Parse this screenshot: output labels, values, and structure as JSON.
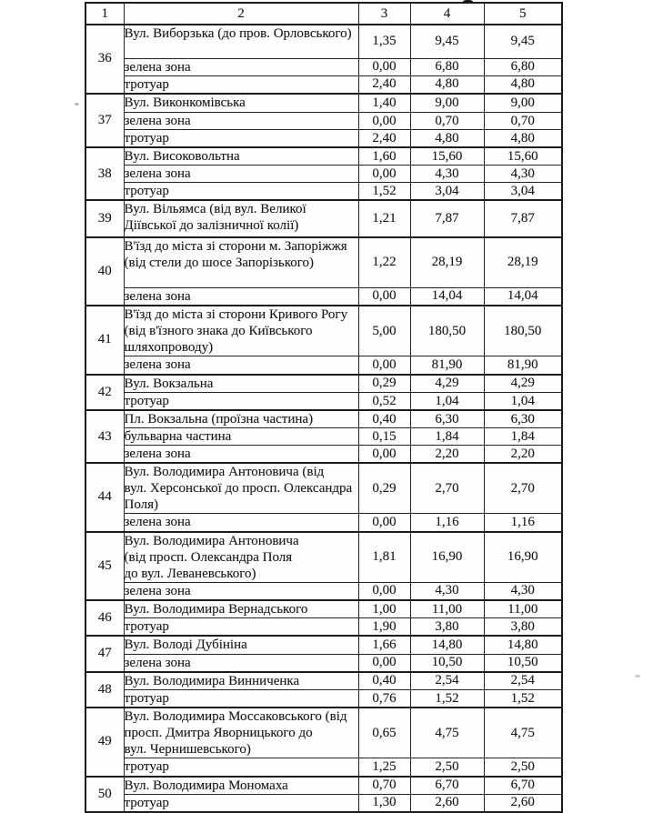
{
  "table": {
    "header": [
      "1",
      "2",
      "3",
      "4",
      "5"
    ],
    "groups": [
      {
        "num": "36",
        "rows": [
          {
            "name": "Вул. Виборзька (до пров. Орловського)",
            "values": [
              "1,35",
              "9,45",
              "9,45"
            ]
          },
          {
            "name": "зелена зона",
            "values": [
              "0,00",
              "6,80",
              "6,80"
            ]
          },
          {
            "name": "тротуар",
            "values": [
              "2,40",
              "4,80",
              "4,80"
            ]
          }
        ]
      },
      {
        "num": "37",
        "rows": [
          {
            "name": "Вул. Виконкомівська",
            "values": [
              "1,40",
              "9,00",
              "9,00"
            ]
          },
          {
            "name": "зелена зона",
            "values": [
              "0,00",
              "0,70",
              "0,70"
            ]
          },
          {
            "name": "тротуар",
            "values": [
              "2,40",
              "4,80",
              "4,80"
            ]
          }
        ]
      },
      {
        "num": "38",
        "rows": [
          {
            "name": "Вул. Високовольтна",
            "values": [
              "1,60",
              "15,60",
              "15,60"
            ]
          },
          {
            "name": "зелена зона",
            "values": [
              "0,00",
              "4,30",
              "4,30"
            ]
          },
          {
            "name": "тротуар",
            "values": [
              "1,52",
              "3,04",
              "3,04"
            ]
          }
        ]
      },
      {
        "num": "39",
        "rows": [
          {
            "name": "Вул. Вільямса (від вул. Великої\nДіївської до залізничної колії)",
            "values": [
              "1,21",
              "7,87",
              "7,87"
            ]
          }
        ]
      },
      {
        "num": "40",
        "rows": [
          {
            "name": "В'їзд до міста зі сторони м. Запоріжжя\n(від стели до шосе Запорізького)",
            "values": [
              "1,22",
              "28,19",
              "28,19"
            ]
          },
          {
            "name": "зелена зона",
            "values": [
              "0,00",
              "14,04",
              "14,04"
            ]
          }
        ]
      },
      {
        "num": "41",
        "rows": [
          {
            "name": "В'їзд до міста зі сторони Кривого Рогу\n(від в'їзного знака до Київського\nшляхопроводу)",
            "values": [
              "5,00",
              "180,50",
              "180,50"
            ]
          },
          {
            "name": "зелена зона",
            "values": [
              "0,00",
              "81,90",
              "81,90"
            ]
          }
        ]
      },
      {
        "num": "42",
        "rows": [
          {
            "name": "Вул. Вокзальна",
            "values": [
              "0,29",
              "4,29",
              "4,29"
            ]
          },
          {
            "name": "тротуар",
            "values": [
              "0,52",
              "1,04",
              "1,04"
            ]
          }
        ]
      },
      {
        "num": "43",
        "rows": [
          {
            "name": "Пл. Вокзальна (проїзна частина)",
            "values": [
              "0,40",
              "6,30",
              "6,30"
            ]
          },
          {
            "name": "бульварна частина",
            "values": [
              "0,15",
              "1,84",
              "1,84"
            ]
          },
          {
            "name": "зелена зона",
            "values": [
              "0,00",
              "2,20",
              "2,20"
            ]
          }
        ]
      },
      {
        "num": "44",
        "rows": [
          {
            "name": "Вул. Володимира  Антоновича (від\nвул. Херсонської до просп. Олександра\nПоля)",
            "values": [
              "0,29",
              "2,70",
              "2,70"
            ]
          },
          {
            "name": "зелена зона",
            "values": [
              "0,00",
              "1,16",
              "1,16"
            ]
          }
        ]
      },
      {
        "num": "45",
        "rows": [
          {
            "name": "Вул. Володимира  Антоновича\n(від просп. Олександра Поля\nдо вул. Леваневського)",
            "values": [
              "1,81",
              "16,90",
              "16,90"
            ]
          },
          {
            "name": "зелена зона",
            "values": [
              "0,00",
              "4,30",
              "4,30"
            ]
          }
        ]
      },
      {
        "num": "46",
        "rows": [
          {
            "name": "Вул. Володимира Вернадського",
            "values": [
              "1,00",
              "11,00",
              "11,00"
            ]
          },
          {
            "name": "тротуар",
            "values": [
              "1,90",
              "3,80",
              "3,80"
            ]
          }
        ]
      },
      {
        "num": "47",
        "rows": [
          {
            "name": "Вул. Володі Дубініна",
            "values": [
              "1,66",
              "14,80",
              "14,80"
            ]
          },
          {
            "name": "зелена зона",
            "values": [
              "0,00",
              "10,50",
              "10,50"
            ]
          }
        ]
      },
      {
        "num": "48",
        "rows": [
          {
            "name": "Вул. Володимира Винниченка",
            "values": [
              "0,40",
              "2,54",
              "2,54"
            ]
          },
          {
            "name": "тротуар",
            "values": [
              "0,76",
              "1,52",
              "1,52"
            ]
          }
        ]
      },
      {
        "num": "49",
        "rows": [
          {
            "name": "Вул. Володимира Моссаковського (від\nпросп. Дмитра Яворницького до\nвул. Чернишевського)",
            "values": [
              "0,65",
              "4,75",
              "4,75"
            ]
          },
          {
            "name": "тротуар",
            "values": [
              "1,25",
              "2,50",
              "2,50"
            ]
          }
        ]
      },
      {
        "num": "50",
        "rows": [
          {
            "name": "Вул. Володимира Мономаха",
            "values": [
              "0,70",
              "6,70",
              "6,70"
            ]
          },
          {
            "name": "тротуар",
            "values": [
              "1,30",
              "2,60",
              "2,60"
            ]
          }
        ]
      }
    ]
  }
}
